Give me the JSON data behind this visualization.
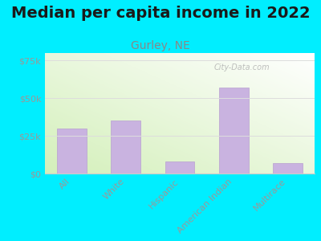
{
  "title": "Median per capita income in 2022",
  "subtitle": "Gurley, NE",
  "categories": [
    "All",
    "White",
    "Hispanic",
    "American Indian",
    "Multirace"
  ],
  "values": [
    30000,
    35000,
    8000,
    57000,
    7000
  ],
  "bar_color": "#c9b3e0",
  "bar_edge_color": "#b8a0d0",
  "background_outer": "#00eeff",
  "ytick_labels": [
    "$0",
    "$25k",
    "$50k",
    "$75k"
  ],
  "ytick_values": [
    0,
    25000,
    50000,
    75000
  ],
  "ylim": [
    0,
    80000
  ],
  "title_fontsize": 14,
  "subtitle_fontsize": 10,
  "watermark": "City-Data.com",
  "tick_color": "#999999",
  "grid_color": "#dddddd",
  "subtitle_color": "#888888"
}
